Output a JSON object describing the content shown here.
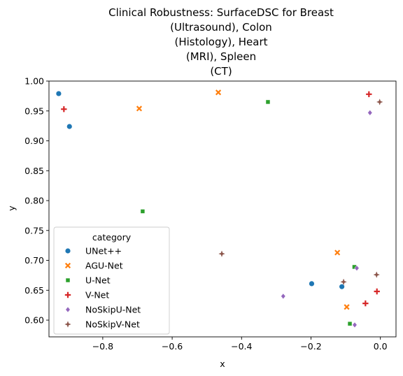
{
  "chart_data": {
    "type": "scatter",
    "title_lines": [
      "Clinical Robustness: SurfaceDSC for Breast",
      "(Ultrasound), Colon",
      "(Histology), Heart",
      "(MRI), Spleen",
      "(CT)"
    ],
    "xlabel": "x",
    "ylabel": "y",
    "xlim": [
      -0.955,
      0.045
    ],
    "ylim": [
      0.572,
      1.0
    ],
    "xticks": [
      "−0.8",
      "−0.6",
      "−0.4",
      "−0.2",
      "0.0"
    ],
    "xtick_values": [
      -0.8,
      -0.6,
      -0.4,
      -0.2,
      0.0
    ],
    "yticks": [
      "0.60",
      "0.65",
      "0.70",
      "0.75",
      "0.80",
      "0.85",
      "0.90",
      "0.95",
      "1.00"
    ],
    "ytick_values": [
      0.6,
      0.65,
      0.7,
      0.75,
      0.8,
      0.85,
      0.9,
      0.95,
      1.0
    ],
    "grid": false,
    "legend": {
      "title": "category",
      "placement": "lower-left"
    },
    "series": [
      {
        "name": "UNet++",
        "color": "#1f77b4",
        "marker": "circle",
        "points": [
          [
            -0.927,
            0.979
          ],
          [
            -0.896,
            0.924
          ],
          [
            -0.198,
            0.661
          ],
          [
            -0.111,
            0.656
          ]
        ]
      },
      {
        "name": "AGU-Net",
        "color": "#ff7f0e",
        "marker": "x",
        "points": [
          [
            -0.467,
            0.981
          ],
          [
            -0.695,
            0.954
          ],
          [
            -0.124,
            0.713
          ],
          [
            -0.097,
            0.622
          ]
        ]
      },
      {
        "name": "U-Net",
        "color": "#2ca02c",
        "marker": "square",
        "points": [
          [
            -0.324,
            0.965
          ],
          [
            -0.685,
            0.782
          ],
          [
            -0.075,
            0.689
          ],
          [
            -0.088,
            0.594
          ]
        ]
      },
      {
        "name": "V-Net",
        "color": "#d62728",
        "marker": "plus",
        "points": [
          [
            -0.912,
            0.953
          ],
          [
            -0.033,
            0.978
          ],
          [
            -0.01,
            0.648
          ],
          [
            -0.043,
            0.628
          ]
        ]
      },
      {
        "name": "NoSkipU-Net",
        "color": "#9467bd",
        "marker": "diamond",
        "points": [
          [
            -0.03,
            0.947
          ],
          [
            -0.28,
            0.64
          ],
          [
            -0.068,
            0.687
          ],
          [
            -0.074,
            0.592
          ]
        ]
      },
      {
        "name": "NoSkipV-Net",
        "color": "#8c564b",
        "marker": "star",
        "points": [
          [
            -0.002,
            0.965
          ],
          [
            -0.457,
            0.711
          ],
          [
            -0.106,
            0.664
          ],
          [
            -0.011,
            0.676
          ]
        ]
      }
    ]
  }
}
